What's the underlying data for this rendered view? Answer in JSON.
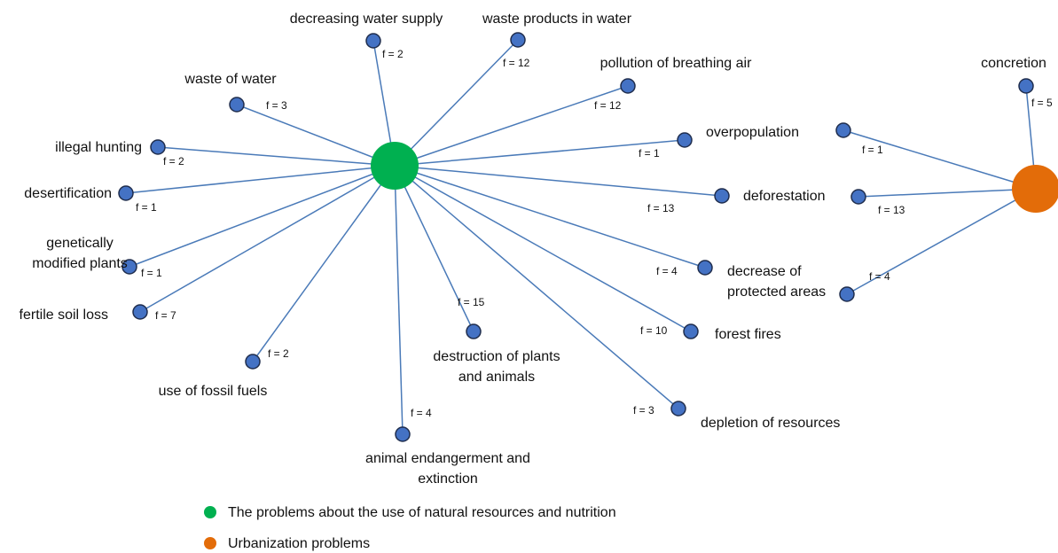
{
  "green_nodes": [
    {
      "label": [
        "decreasing water supply"
      ],
      "f": "f = 2"
    },
    {
      "label": [
        "waste products in water"
      ],
      "f": "f = 12"
    },
    {
      "label": [
        "pollution of breathing air"
      ],
      "f": "f = 12"
    },
    {
      "label": [
        "waste of water"
      ],
      "f": "f = 3"
    },
    {
      "label": [
        "illegal hunting"
      ],
      "f": "f = 2"
    },
    {
      "label": [
        "overpopulation"
      ],
      "f": "f = 1"
    },
    {
      "label": [
        "desertification"
      ],
      "f": "f = 1"
    },
    {
      "label": [
        "deforestation"
      ],
      "f": "f = 13"
    },
    {
      "label": [
        "genetically",
        "modified plants"
      ],
      "f": "f = 1"
    },
    {
      "label": [
        "decrease of",
        "protected areas"
      ],
      "f": "f = 4"
    },
    {
      "label": [
        "fertile soil loss"
      ],
      "f": "f = 7"
    },
    {
      "label": [
        "destruction of plants",
        "and animals"
      ],
      "f": "f = 15"
    },
    {
      "label": [
        "forest fires"
      ],
      "f": "f = 10"
    },
    {
      "label": [
        "use of fossil fuels"
      ],
      "f": "f = 2"
    },
    {
      "label": [
        "animal endangerment and",
        "extinction"
      ],
      "f": "f = 4"
    },
    {
      "label": [
        "depletion of resources"
      ],
      "f": "f = 3"
    }
  ],
  "orange_nodes": [
    {
      "label": [
        "concretion"
      ],
      "f": "f = 5"
    },
    {
      "f": "f = 1"
    },
    {
      "f": "f = 13"
    },
    {
      "f": "f = 4"
    }
  ],
  "legend": [
    "The problems about the use of natural resources and nutrition",
    "Urbanization problems"
  ]
}
